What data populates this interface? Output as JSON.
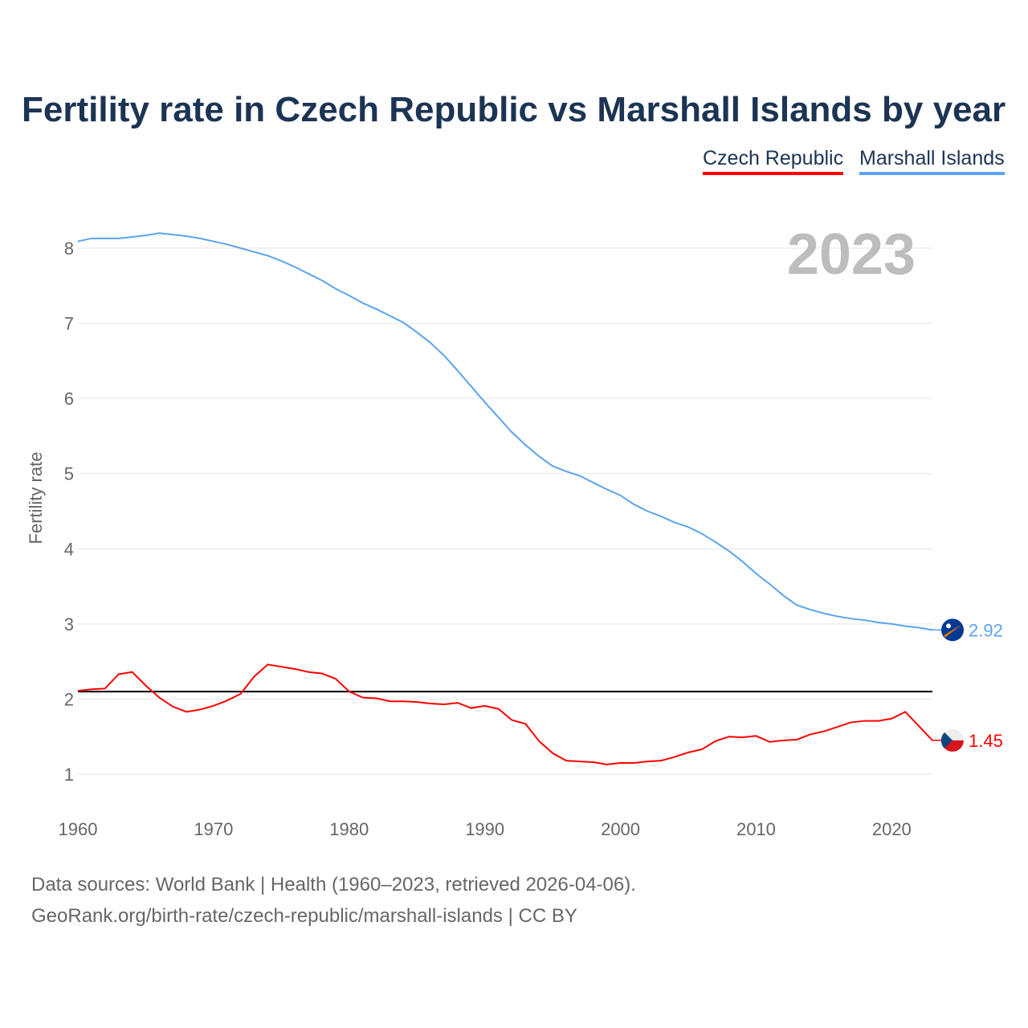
{
  "title": "Fertility rate in Czech Republic vs Marshall Islands by year",
  "footer": {
    "line1": "Data sources: World Bank | Health (1960–2023, retrieved 2026-04-06).",
    "line2": "GeoRank.org/birth-rate/czech-republic/marshall-islands | CC BY"
  },
  "chart_data": {
    "type": "line",
    "title": "Fertility rate in Czech Republic vs Marshall Islands by year",
    "ylabel": "Fertility rate",
    "xlabel": "",
    "year_label": "2023",
    "xlim": [
      1960,
      2023
    ],
    "ylim": [
      1,
      8
    ],
    "xticks": [
      1960,
      1970,
      1980,
      1990,
      2000,
      2010,
      2020
    ],
    "yticks": [
      1,
      2,
      3,
      4,
      5,
      6,
      7,
      8
    ],
    "grid": true,
    "legend_position": "top-right",
    "reference_line": 2.1,
    "x": [
      1960,
      1961,
      1962,
      1963,
      1964,
      1965,
      1966,
      1967,
      1968,
      1969,
      1970,
      1971,
      1972,
      1973,
      1974,
      1975,
      1976,
      1977,
      1978,
      1979,
      1980,
      1981,
      1982,
      1983,
      1984,
      1985,
      1986,
      1987,
      1988,
      1989,
      1990,
      1991,
      1992,
      1993,
      1994,
      1995,
      1996,
      1997,
      1998,
      1999,
      2000,
      2001,
      2002,
      2003,
      2004,
      2005,
      2006,
      2007,
      2008,
      2009,
      2010,
      2011,
      2012,
      2013,
      2014,
      2015,
      2016,
      2017,
      2018,
      2019,
      2020,
      2021,
      2022,
      2023
    ],
    "series": [
      {
        "name": "Czech Republic",
        "color": "#ff0000",
        "end_label": "1.45",
        "values": [
          2.11,
          2.13,
          2.14,
          2.33,
          2.36,
          2.18,
          2.02,
          1.9,
          1.83,
          1.86,
          1.91,
          1.98,
          2.07,
          2.3,
          2.46,
          2.43,
          2.4,
          2.36,
          2.34,
          2.27,
          2.1,
          2.02,
          2.01,
          1.97,
          1.97,
          1.96,
          1.94,
          1.93,
          1.95,
          1.88,
          1.91,
          1.87,
          1.72,
          1.67,
          1.44,
          1.28,
          1.18,
          1.17,
          1.16,
          1.13,
          1.15,
          1.15,
          1.17,
          1.18,
          1.23,
          1.29,
          1.33,
          1.44,
          1.5,
          1.49,
          1.51,
          1.43,
          1.45,
          1.46,
          1.53,
          1.57,
          1.63,
          1.69,
          1.71,
          1.71,
          1.74,
          1.83,
          1.64,
          1.45
        ]
      },
      {
        "name": "Marshall Islands",
        "color": "#5ba4ee",
        "end_label": "2.92",
        "values": [
          8.09,
          8.13,
          8.13,
          8.13,
          8.15,
          8.17,
          8.2,
          8.18,
          8.16,
          8.13,
          8.09,
          8.05,
          8.0,
          7.95,
          7.9,
          7.83,
          7.75,
          7.66,
          7.57,
          7.46,
          7.37,
          7.27,
          7.19,
          7.1,
          7.01,
          6.88,
          6.74,
          6.57,
          6.37,
          6.16,
          5.95,
          5.75,
          5.55,
          5.38,
          5.23,
          5.1,
          5.03,
          4.97,
          4.88,
          4.79,
          4.71,
          4.59,
          4.5,
          4.43,
          4.35,
          4.29,
          4.2,
          4.09,
          3.97,
          3.83,
          3.67,
          3.53,
          3.38,
          3.25,
          3.19,
          3.14,
          3.1,
          3.07,
          3.05,
          3.02,
          3.0,
          2.97,
          2.95,
          2.92
        ]
      }
    ]
  }
}
